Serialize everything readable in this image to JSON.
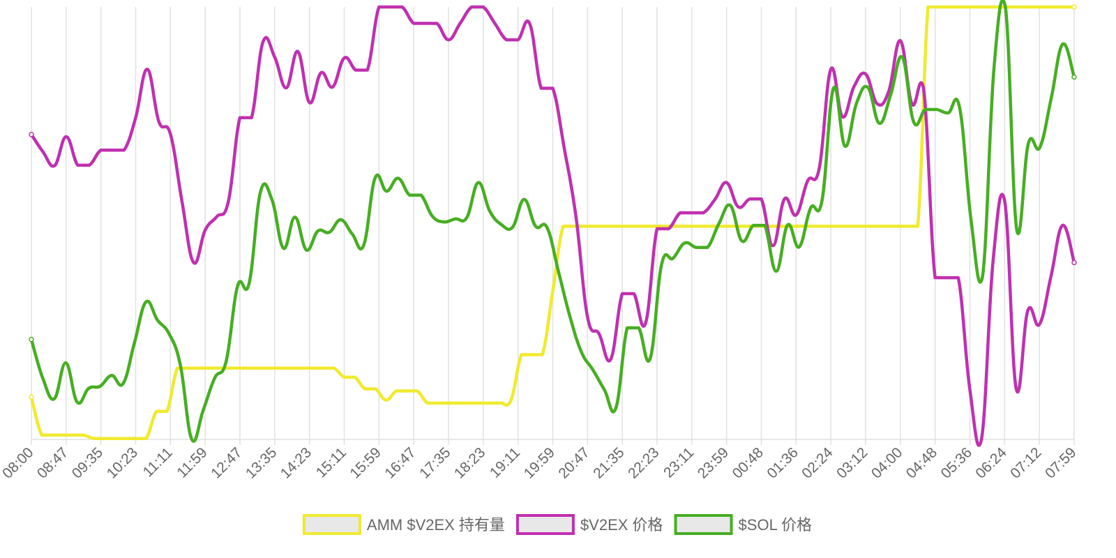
{
  "chart_data": {
    "type": "line",
    "title": "",
    "xlabel": "",
    "ylabel": "",
    "x_ticks": [
      "08:00",
      "08:47",
      "09:35",
      "10:23",
      "11:11",
      "11:59",
      "12:47",
      "13:35",
      "14:23",
      "15:11",
      "15:59",
      "16:47",
      "17:35",
      "18:23",
      "19:11",
      "19:59",
      "20:47",
      "21:35",
      "22:23",
      "23:11",
      "23:59",
      "00:48",
      "01:36",
      "02:24",
      "03:12",
      "04:00",
      "04:48",
      "05:36",
      "06:24",
      "07:12",
      "07:59"
    ],
    "ylim": [
      0,
      100
    ],
    "y_axis_labels_shown": false,
    "grid": {
      "vertical": true,
      "horizontal": false
    },
    "legend_position": "bottom",
    "series": [
      {
        "name": "AMM $V2EX 持有量",
        "color": "#f0ea2e",
        "values": [
          9.8,
          1,
          1,
          1,
          1,
          1,
          0.2,
          0.2,
          0.2,
          0.2,
          0.2,
          0.2,
          6.5,
          6.5,
          16.5,
          16.5,
          16.5,
          16.5,
          16.5,
          16.5,
          16.5,
          16.5,
          16.5,
          16.5,
          16.5,
          16.5,
          16.5,
          16.5,
          16.5,
          16.5,
          14.4,
          14.4,
          11.7,
          11.7,
          9.1,
          11.2,
          11.2,
          11.2,
          8.4,
          8.4,
          8.4,
          8.4,
          8.4,
          8.4,
          8.4,
          8.4,
          9.1,
          19.6,
          19.6,
          19.6,
          34.3,
          49.3,
          49.3,
          49.3,
          49.3,
          49.3,
          49.3,
          49.3,
          49.3,
          49.3,
          49.3,
          49.3,
          49.3,
          49.3,
          49.3,
          49.3,
          49.3,
          49.3,
          49.3,
          49.3,
          49.3,
          49.3,
          49.3,
          49.3,
          49.3,
          49.3,
          49.3,
          49.3,
          49.3,
          49.3,
          49.3,
          49.3,
          49.3,
          49.3,
          49.3,
          49.3,
          100,
          100,
          100,
          100,
          100,
          100,
          100,
          100,
          100,
          100,
          100,
          100,
          100,
          100,
          100
        ]
      },
      {
        "name": "$V2EX 价格",
        "color": "#c030b0",
        "values": [
          70.5,
          66.5,
          63.3,
          70,
          63.4,
          63.4,
          66.9,
          66.9,
          66.9,
          74.4,
          85.6,
          73.5,
          70.6,
          55,
          40.9,
          48.4,
          51.5,
          55,
          74.4,
          74.4,
          92,
          88.4,
          81.3,
          89.7,
          77.9,
          84.8,
          81.5,
          88.2,
          85.4,
          85.4,
          100,
          100,
          100,
          96.2,
          96.2,
          96.2,
          92.4,
          96.2,
          100,
          100,
          96.2,
          92.4,
          92.4,
          96.2,
          81.2,
          81.2,
          67.2,
          51.6,
          28.3,
          24.4,
          18.5,
          33.7,
          33.7,
          26.8,
          48.7,
          48.7,
          52.4,
          52.4,
          52.4,
          55.5,
          59.4,
          53.8,
          55.6,
          55.6,
          44.8,
          55.6,
          51.9,
          59.8,
          62.7,
          85.6,
          74.6,
          81.6,
          84.5,
          77.6,
          80.5,
          92.2,
          77.6,
          81.2,
          37.4,
          37.4,
          37.4,
          11.5,
          0,
          41.2,
          55.2,
          11.7,
          29.8,
          26.6,
          37.7,
          49.5,
          40.9
        ]
      },
      {
        "name": "$SOL 价格",
        "color": "#46ae22",
        "values": [
          23.1,
          14.1,
          9.4,
          17.7,
          8.6,
          11.8,
          12.3,
          14.8,
          12.9,
          22.4,
          31.8,
          27.6,
          24.5,
          17.2,
          0,
          6.8,
          14.2,
          18.1,
          35.5,
          36.1,
          57.3,
          55.4,
          44.2,
          51.4,
          43.8,
          48.2,
          47.9,
          50.8,
          47.5,
          44.9,
          60.5,
          57.4,
          60.4,
          56.5,
          56.5,
          51.6,
          50.3,
          51,
          51.3,
          59.4,
          52.8,
          49.7,
          49.1,
          55.5,
          49.3,
          49,
          38.8,
          28.4,
          20.2,
          16.1,
          11.5,
          7.2,
          25.8,
          25.8,
          18.7,
          40.5,
          41.9,
          45.4,
          44.4,
          44.4,
          49.9,
          54.1,
          45.9,
          49.5,
          49.5,
          38.9,
          49.6,
          44.5,
          53.5,
          55.3,
          81.2,
          67.8,
          77.7,
          81.4,
          73.1,
          79.8,
          88.4,
          73.4,
          76.3,
          76.3,
          75.5,
          76.8,
          50.8,
          37.6,
          85.7,
          100,
          48.3,
          68.4,
          67.5,
          78.9,
          91.4,
          83.8
        ]
      }
    ]
  }
}
